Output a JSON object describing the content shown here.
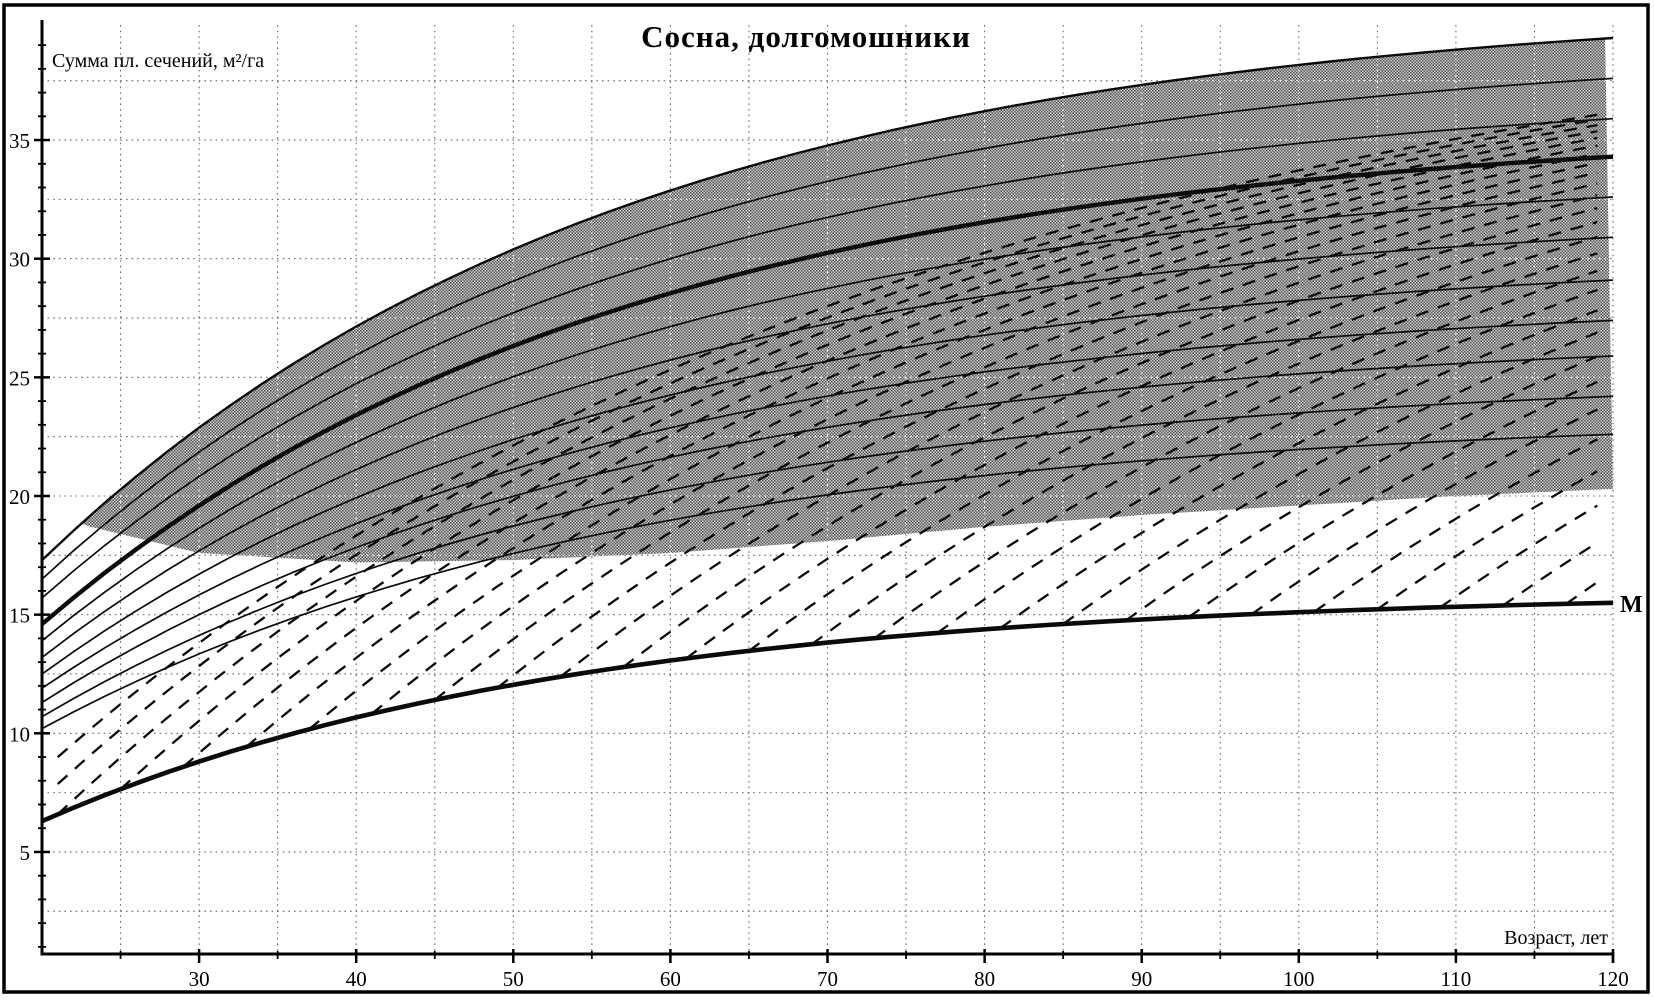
{
  "chart_data": {
    "type": "line",
    "title": "Сосна, долгомошники",
    "ylabel": "Сумма пл. сечений, м²/га",
    "xlabel": "Возраст, лет",
    "min_line_label": "M",
    "x_axis": {
      "min": 20,
      "max": 120,
      "major_ticks": [
        30,
        40,
        50,
        60,
        70,
        80,
        90,
        100,
        110,
        120
      ],
      "minor_step": 5,
      "grid_step": 5
    },
    "y_axis": {
      "min": 0,
      "max": 40,
      "major_ticks": [
        5,
        10,
        15,
        20,
        25,
        30,
        35
      ],
      "minor_step": 1,
      "grid_step": 2.5
    },
    "grid_style": "dotted",
    "curve_shape_k": 2.7,
    "solid_curves": [
      {
        "g20": 17.3,
        "g120": 39.3,
        "role": "band-top"
      },
      {
        "g20": 16.5,
        "g120": 37.6,
        "role": "thin"
      },
      {
        "g20": 15.7,
        "g120": 35.9,
        "role": "thin"
      },
      {
        "g20": 14.6,
        "g120": 34.3,
        "role": "bold"
      },
      {
        "g20": 13.9,
        "g120": 32.6,
        "role": "thin"
      },
      {
        "g20": 13.2,
        "g120": 30.9,
        "role": "thin"
      },
      {
        "g20": 12.5,
        "g120": 29.1,
        "role": "thin"
      },
      {
        "g20": 11.9,
        "g120": 27.4,
        "role": "thin"
      },
      {
        "g20": 11.3,
        "g120": 25.9,
        "role": "thin"
      },
      {
        "g20": 10.7,
        "g120": 24.2,
        "role": "thin"
      },
      {
        "g20": 10.2,
        "g120": 22.6,
        "role": "thin"
      }
    ],
    "band": {
      "fill": "halftone-gray",
      "start_age": 22.5,
      "bottom_points": [
        [
          22.5,
          18.8
        ],
        [
          30,
          17.6
        ],
        [
          40,
          17.2
        ],
        [
          50,
          17.3
        ],
        [
          60,
          17.6
        ],
        [
          70,
          18.1
        ],
        [
          80,
          18.7
        ],
        [
          90,
          19.2
        ],
        [
          100,
          19.6
        ],
        [
          110,
          20.0
        ],
        [
          120,
          20.3
        ]
      ]
    },
    "m_curve": {
      "g20": 6.3,
      "g120": 15.5,
      "shape_k": 3.0
    },
    "dashed_lines": {
      "start_ages": [
        13,
        17,
        21,
        25,
        29,
        33,
        37,
        41,
        45,
        49,
        53,
        57,
        61,
        65,
        69,
        73,
        77,
        81,
        85,
        89,
        93,
        97,
        101,
        105,
        109,
        113,
        117
      ],
      "rate": 0.0172,
      "asymptote": 42
    },
    "colors": {
      "ink": "#0a0a0a",
      "band_light": "#c9c9c9",
      "band_dark": "#585858",
      "grid": "#6a6a6a"
    }
  }
}
